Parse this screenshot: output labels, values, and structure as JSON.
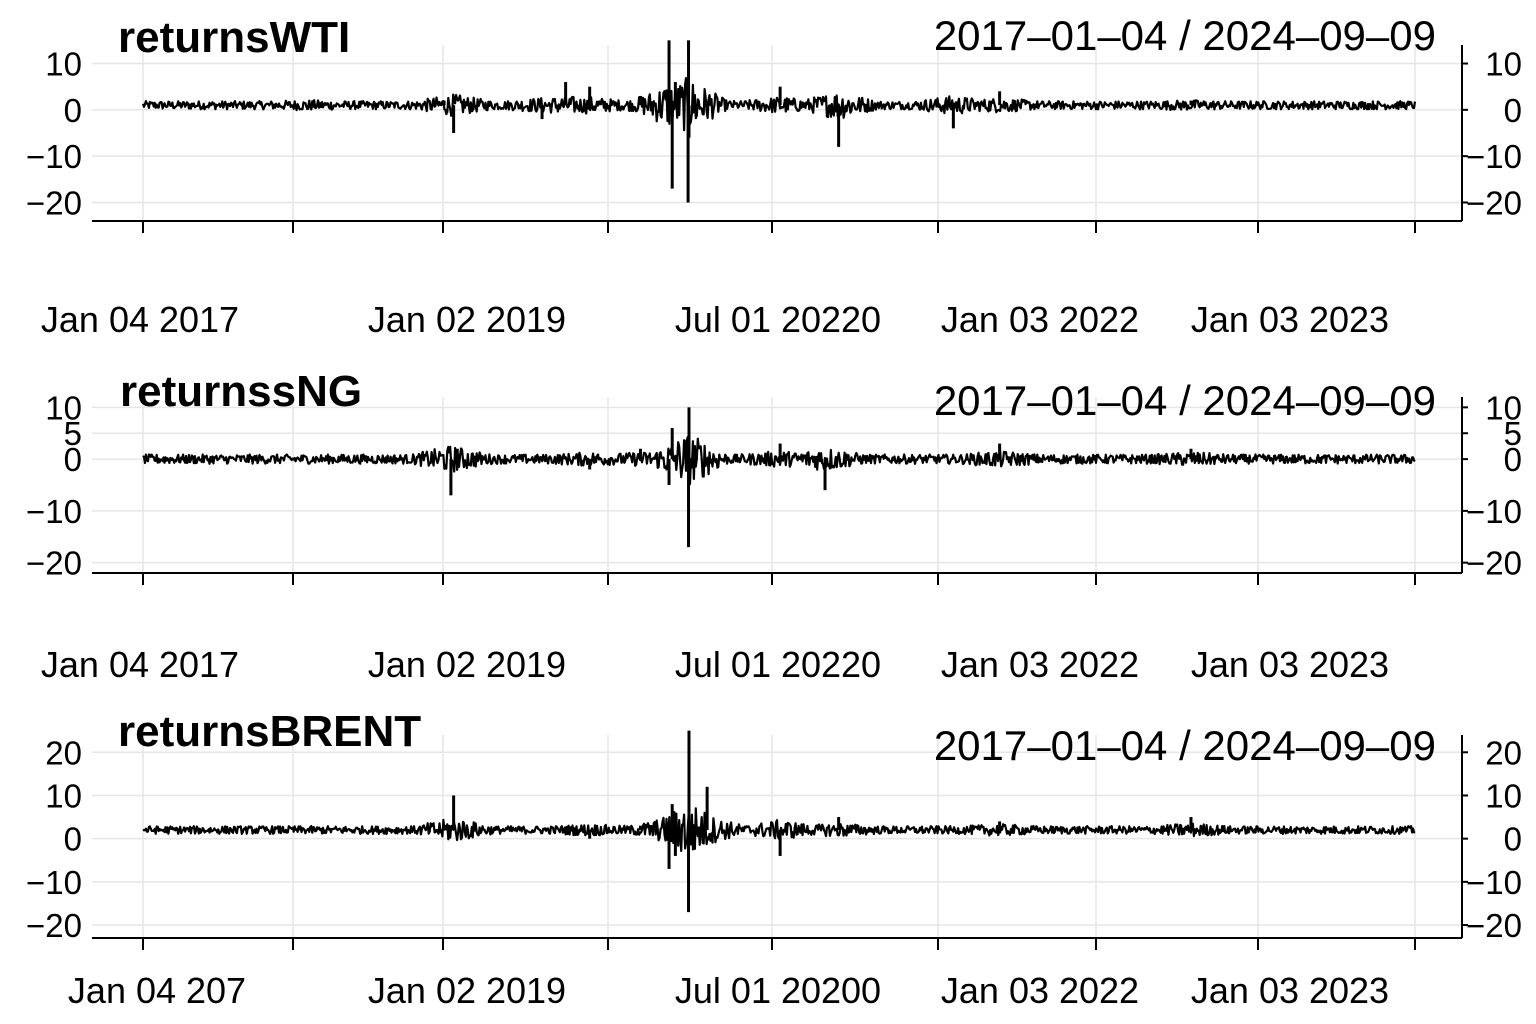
{
  "chart_data": [
    {
      "type": "line",
      "title": "returnsWTI",
      "date_range_label": "2017–01–04 / 2024–09–09",
      "x_range": [
        "2017-01-04",
        "2024-09-09"
      ],
      "ylim": [
        -24,
        14
      ],
      "y_ticks": [
        10,
        0,
        -10,
        -20
      ],
      "y_tick_labels": [
        "10",
        "0",
        "−10",
        "−20"
      ],
      "x_tick_labels": [
        "Jan 04 2017",
        "Jan 02 2019",
        "Jul 01 20220",
        "Jan 03 2022",
        "Jan 03 2023"
      ],
      "grid": true,
      "series": [
        {
          "x": [
            "2017-01-04",
            "2018-01-02",
            "2018-10-30",
            "2018-11-20",
            "2019-01-02",
            "2019-06-03",
            "2019-07-25",
            "2019-09-16",
            "2019-10-10",
            "2020-01-06",
            "2020-03-09",
            "2020-03-16",
            "2020-03-23",
            "2020-04-20",
            "2020-04-21",
            "2020-04-22",
            "2020-06-01",
            "2020-11-09",
            "2021-03-18",
            "2021-11-26",
            "2022-03-08",
            "2023-05-04",
            "2024-09-09"
          ],
          "y": [
            1,
            0,
            2,
            -5,
            0,
            -2,
            6,
            5,
            2,
            3,
            15,
            -17,
            6,
            -20,
            15,
            -6,
            2,
            5,
            -8,
            -4,
            4,
            2,
            1
          ]
        }
      ]
    },
    {
      "type": "line",
      "title": "returnssNG",
      "date_range_label": "2017–01–04 / 2024–09–09",
      "x_range": [
        "2017-01-04",
        "2024-09-09"
      ],
      "ylim": [
        -22,
        12
      ],
      "y_ticks": [
        10,
        5,
        0,
        -10,
        -20
      ],
      "y_tick_labels": [
        "10",
        "5",
        "0",
        "−10",
        "−20"
      ],
      "x_tick_labels": [
        "Jan 04 2017",
        "Jan 02 2019",
        "Jul 01 20220",
        "Jan 03 2022",
        "Jan 03 2023"
      ],
      "grid": true,
      "series": [
        {
          "x": [
            "2017-01-04",
            "2018-01-02",
            "2018-11-14",
            "2018-11-28",
            "2019-01-02",
            "2019-09-16",
            "2020-01-06",
            "2020-03-09",
            "2020-03-16",
            "2020-04-21",
            "2020-04-22",
            "2020-11-09",
            "2021-02-16",
            "2022-03-08",
            "2023-05-04",
            "2024-09-09"
          ],
          "y": [
            0,
            0,
            -7,
            2,
            0,
            -2,
            2,
            -5,
            6,
            -17,
            10,
            3,
            -6,
            3,
            2,
            0
          ]
        }
      ]
    },
    {
      "type": "line",
      "title": "returnsBRENT",
      "date_range_label": "2017–01–04 / 2024–09–09",
      "x_range": [
        "2017-01-04",
        "2024-09-09"
      ],
      "ylim": [
        -23,
        24
      ],
      "y_ticks": [
        20,
        10,
        0,
        -10,
        -20
      ],
      "y_tick_labels": [
        "20",
        "10",
        "0",
        "−10",
        "−20"
      ],
      "x_tick_labels": [
        "Jan 04 207",
        "Jan 02 2019",
        "Jul 01 20200",
        "Jan 03 2022",
        "Jan 03 2023"
      ],
      "grid": true,
      "series": [
        {
          "x": [
            "2017-01-04",
            "2018-01-02",
            "2018-11-20",
            "2019-01-02",
            "2019-09-16",
            "2020-01-06",
            "2020-03-09",
            "2020-03-16",
            "2020-03-23",
            "2020-04-21",
            "2020-04-22",
            "2020-06-01",
            "2020-11-09",
            "2021-03-18",
            "2022-03-08",
            "2023-05-04",
            "2024-09-09"
          ],
          "y": [
            2,
            2,
            10,
            2,
            0,
            3,
            -7,
            8,
            -4,
            -17,
            25,
            12,
            -4,
            5,
            4,
            5,
            2
          ]
        }
      ]
    }
  ]
}
